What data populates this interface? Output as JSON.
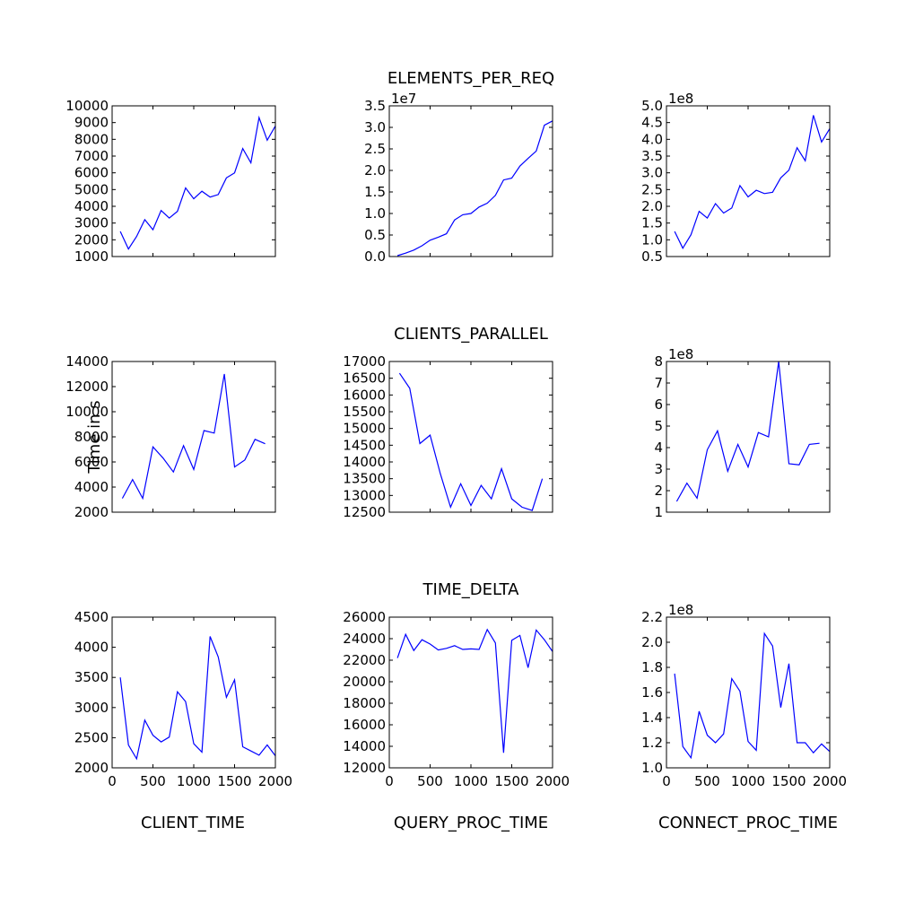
{
  "chart_data": [
    {
      "type": "line",
      "row": "ELEMENTS_PER_REQ",
      "col": "CLIENT_TIME",
      "xlim": [
        0,
        2000
      ],
      "ylim": [
        1000,
        10000
      ],
      "yticks": [
        1000,
        2000,
        3000,
        4000,
        5000,
        6000,
        7000,
        8000,
        9000,
        10000
      ],
      "x": [
        100,
        200,
        300,
        400,
        500,
        600,
        700,
        800,
        900,
        1000,
        1100,
        1200,
        1300,
        1400,
        1500,
        1600,
        1700,
        1800,
        1900,
        2000
      ],
      "values": [
        2500,
        1450,
        2200,
        3200,
        2600,
        3750,
        3300,
        3700,
        5100,
        4450,
        4900,
        4550,
        4700,
        5700,
        6000,
        7450,
        6600,
        9300,
        7950,
        8800
      ]
    },
    {
      "type": "line",
      "row": "ELEMENTS_PER_REQ",
      "col": "QUERY_PROC_TIME",
      "xlim": [
        0,
        2000
      ],
      "ylim": [
        0,
        3.5
      ],
      "yticks": [
        0.0,
        0.5,
        1.0,
        1.5,
        2.0,
        2.5,
        3.0,
        3.5
      ],
      "offset": "1e7",
      "x": [
        100,
        200,
        300,
        400,
        500,
        600,
        700,
        800,
        900,
        1000,
        1100,
        1200,
        1300,
        1400,
        1500,
        1600,
        1700,
        1800,
        1900,
        2000
      ],
      "values": [
        0.02,
        0.08,
        0.15,
        0.25,
        0.38,
        0.45,
        0.53,
        0.85,
        0.97,
        1.0,
        1.15,
        1.24,
        1.42,
        1.78,
        1.82,
        2.1,
        2.28,
        2.45,
        3.05,
        3.15
      ]
    },
    {
      "type": "line",
      "row": "ELEMENTS_PER_REQ",
      "col": "CONNECT_PROC_TIME",
      "xlim": [
        0,
        2000
      ],
      "ylim": [
        0.5,
        5.0
      ],
      "yticks": [
        0.5,
        1.0,
        1.5,
        2.0,
        2.5,
        3.0,
        3.5,
        4.0,
        4.5,
        5.0
      ],
      "offset": "1e8",
      "x": [
        100,
        200,
        300,
        400,
        500,
        600,
        700,
        800,
        900,
        1000,
        1100,
        1200,
        1300,
        1400,
        1500,
        1600,
        1700,
        1800,
        1900,
        2000
      ],
      "values": [
        1.25,
        0.75,
        1.15,
        1.85,
        1.65,
        2.08,
        1.8,
        1.95,
        2.62,
        2.28,
        2.48,
        2.38,
        2.42,
        2.85,
        3.08,
        3.75,
        3.36,
        4.72,
        3.92,
        4.32
      ]
    },
    {
      "type": "line",
      "row": "CLIENTS_PARALLEL",
      "col": "CLIENT_TIME",
      "xlim": [
        0,
        2000
      ],
      "ylim": [
        2000,
        14000
      ],
      "yticks": [
        2000,
        4000,
        6000,
        8000,
        10000,
        12000,
        14000
      ],
      "x": [
        125,
        250,
        375,
        500,
        625,
        750,
        875,
        1000,
        1125,
        1250,
        1375,
        1500,
        1625,
        1750,
        1875
      ],
      "values": [
        3100,
        4600,
        3100,
        7200,
        6300,
        5200,
        7300,
        5400,
        8500,
        8300,
        13000,
        5600,
        6150,
        7800,
        7450
      ]
    },
    {
      "type": "line",
      "row": "CLIENTS_PARALLEL",
      "col": "QUERY_PROC_TIME",
      "xlim": [
        0,
        2000
      ],
      "ylim": [
        12500,
        17000
      ],
      "yticks": [
        12500,
        13000,
        13500,
        14000,
        14500,
        15000,
        15500,
        16000,
        16500,
        17000
      ],
      "x": [
        125,
        250,
        375,
        500,
        625,
        750,
        875,
        1000,
        1125,
        1250,
        1375,
        1500,
        1625,
        1750,
        1875
      ],
      "values": [
        16650,
        16200,
        14550,
        14800,
        13650,
        12650,
        13350,
        12700,
        13300,
        12900,
        13800,
        12900,
        12650,
        12550,
        13500
      ]
    },
    {
      "type": "line",
      "row": "CLIENTS_PARALLEL",
      "col": "CONNECT_PROC_TIME",
      "xlim": [
        0,
        2000
      ],
      "ylim": [
        1,
        8
      ],
      "yticks": [
        1,
        2,
        3,
        4,
        5,
        6,
        7,
        8
      ],
      "offset": "1e8",
      "x": [
        125,
        250,
        375,
        500,
        625,
        750,
        875,
        1000,
        1125,
        1250,
        1375,
        1500,
        1625,
        1750,
        1875
      ],
      "values": [
        1.5,
        2.35,
        1.65,
        3.9,
        4.78,
        2.9,
        4.15,
        3.1,
        4.7,
        4.5,
        8.0,
        3.25,
        3.2,
        4.15,
        4.2
      ]
    },
    {
      "type": "line",
      "row": "TIME_DELTA",
      "col": "CLIENT_TIME",
      "xlim": [
        0,
        2000
      ],
      "ylim": [
        2000,
        4500
      ],
      "yticks": [
        2000,
        2500,
        3000,
        3500,
        4000,
        4500
      ],
      "xticks": [
        0,
        500,
        1000,
        1500,
        2000
      ],
      "x": [
        100,
        200,
        300,
        400,
        500,
        600,
        700,
        800,
        900,
        1000,
        1100,
        1200,
        1300,
        1400,
        1500,
        1600,
        1700,
        1800,
        1900,
        2000
      ],
      "values": [
        3500,
        2380,
        2150,
        2790,
        2540,
        2430,
        2510,
        3260,
        3100,
        2400,
        2260,
        4180,
        3840,
        3170,
        3460,
        2350,
        2280,
        2210,
        2380,
        2200
      ]
    },
    {
      "type": "line",
      "row": "TIME_DELTA",
      "col": "QUERY_PROC_TIME",
      "xlim": [
        0,
        2000
      ],
      "ylim": [
        12000,
        26000
      ],
      "yticks": [
        12000,
        14000,
        16000,
        18000,
        20000,
        22000,
        24000,
        26000
      ],
      "xticks": [
        0,
        500,
        1000,
        1500,
        2000
      ],
      "x": [
        100,
        200,
        300,
        400,
        500,
        600,
        700,
        800,
        900,
        1000,
        1100,
        1200,
        1300,
        1400,
        1500,
        1600,
        1700,
        1800,
        1900,
        2000
      ],
      "values": [
        22200,
        24400,
        22900,
        23900,
        23500,
        22950,
        23100,
        23350,
        23000,
        23050,
        23000,
        24850,
        23600,
        13400,
        23850,
        24300,
        21300,
        24800,
        23900,
        22800
      ]
    },
    {
      "type": "line",
      "row": "TIME_DELTA",
      "col": "CONNECT_PROC_TIME",
      "xlim": [
        0,
        2000
      ],
      "ylim": [
        1.0,
        2.2
      ],
      "yticks": [
        1.0,
        1.2,
        1.4,
        1.6,
        1.8,
        2.0,
        2.2
      ],
      "xticks": [
        0,
        500,
        1000,
        1500,
        2000
      ],
      "offset": "1e8",
      "x": [
        100,
        200,
        300,
        400,
        500,
        600,
        700,
        800,
        900,
        1000,
        1100,
        1200,
        1300,
        1400,
        1500,
        1600,
        1700,
        1800,
        1900,
        2000
      ],
      "values": [
        1.75,
        1.17,
        1.08,
        1.45,
        1.26,
        1.2,
        1.27,
        1.71,
        1.61,
        1.21,
        1.14,
        2.07,
        1.97,
        1.48,
        1.83,
        1.2,
        1.2,
        1.12,
        1.19,
        1.13
      ]
    }
  ],
  "row_titles": [
    "ELEMENTS_PER_REQ",
    "CLIENTS_PARALLEL",
    "TIME_DELTA"
  ],
  "col_labels": [
    "CLIENT_TIME",
    "QUERY_PROC_TIME",
    "CONNECT_PROC_TIME"
  ],
  "ylabel": "Time in s",
  "line_color": "#0000ff"
}
